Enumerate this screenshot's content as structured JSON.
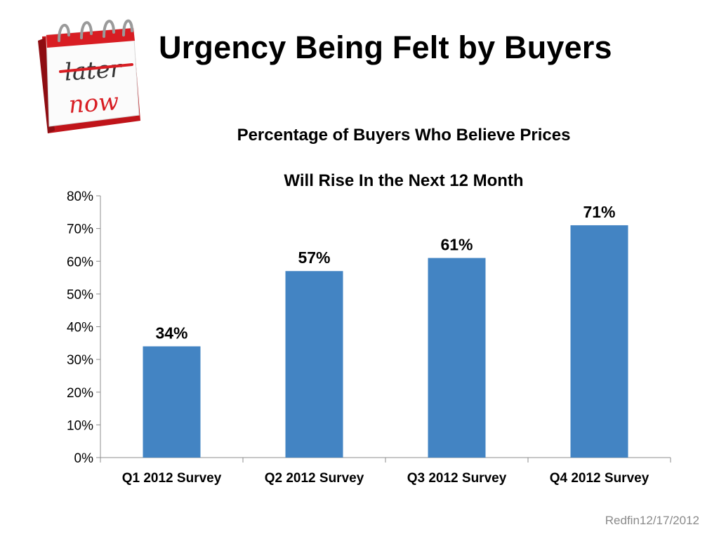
{
  "slide": {
    "title": "Urgency Being Felt by Buyers",
    "footer": "Redfin12/17/2012",
    "icon": {
      "name": "calendar-later-now-icon",
      "text_top": "later",
      "text_bottom": "now"
    }
  },
  "chart_data": {
    "type": "bar",
    "title": [
      "Percentage of Buyers Who Believe Prices",
      "Will Rise In the Next 12 Month"
    ],
    "categories": [
      "Q1 2012 Survey",
      "Q2 2012 Survey",
      "Q3 2012 Survey",
      "Q4 2012 Survey"
    ],
    "values": [
      34,
      57,
      61,
      71
    ],
    "data_labels": [
      "34%",
      "57%",
      "61%",
      "71%"
    ],
    "ylim": [
      0,
      80
    ],
    "yticks": [
      0,
      10,
      20,
      30,
      40,
      50,
      60,
      70,
      80
    ],
    "ytick_labels": [
      "0%",
      "10%",
      "20%",
      "30%",
      "40%",
      "50%",
      "60%",
      "70%",
      "80%"
    ],
    "bar_color": "#4384c3",
    "grid": false,
    "legend": "none"
  }
}
